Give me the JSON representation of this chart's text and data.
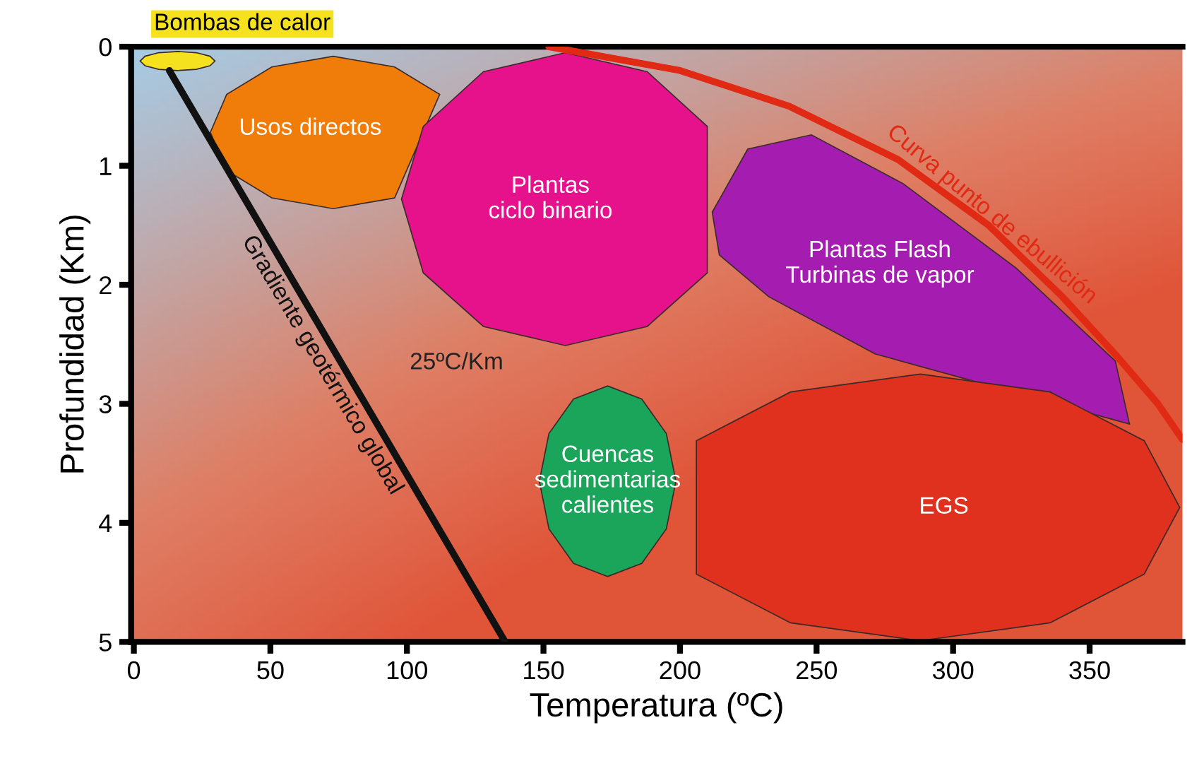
{
  "chart_data": {
    "type": "area",
    "xlabel": "Temperatura (ºC)",
    "ylabel": "Profundidad (Km)",
    "xlim": [
      -1,
      384
    ],
    "ylim": [
      5,
      0
    ],
    "xticks": [
      0,
      50,
      100,
      150,
      200,
      250,
      300,
      350
    ],
    "yticks": [
      0,
      1,
      2,
      3,
      4,
      5
    ],
    "grid": false,
    "legend": false,
    "series": [
      {
        "color": "#f5e11e",
        "x": [
          29.7,
          27.9,
          22.9,
          16,
          9.1,
          4.1,
          2.3,
          4.1,
          9.1,
          16,
          22.9,
          27.9
        ],
        "values": [
          0.12,
          0.16,
          0.19,
          0.2,
          0.19,
          0.16,
          0.12,
          0.08,
          0.05,
          0.04,
          0.05,
          0.08
        ]
      },
      {
        "name": "Usos directos",
        "color": "#f07d0a",
        "x": [
          95.5,
          73,
          50.5,
          34,
          28,
          34,
          50.5,
          73,
          95.5,
          112
        ],
        "values": [
          1.27,
          1.36,
          1.27,
          1.04,
          0.72,
          0.4,
          0.17,
          0.08,
          0.17,
          0.4
        ]
      },
      {
        "name": "Plantas\nciclo binario",
        "color": "#e6128c",
        "x": [
          210,
          188,
          158,
          128,
          106,
          98,
          106,
          128,
          158,
          188,
          210
        ],
        "values": [
          1.9,
          2.35,
          2.51,
          2.35,
          1.9,
          1.28,
          0.67,
          0.21,
          0.05,
          0.21,
          0.67
        ]
      },
      {
        "name": "Plantas Flash\nTurbinas de vapor",
        "color": "#a51db0",
        "x": [
          211.8,
          224.8,
          248.1,
          281.7,
          323.1,
          359.4,
          364.6,
          271.4,
          232.5,
          214.4
        ],
        "values": [
          1.39,
          0.86,
          0.74,
          1.15,
          1.86,
          2.64,
          3.17,
          2.58,
          2.1,
          1.75
        ]
      },
      {
        "name": "EGS",
        "color": "#e0301e",
        "x": [
          383,
          370,
          335.5,
          288,
          240.5,
          206,
          206,
          240.5,
          288,
          335.5,
          370
        ],
        "values": [
          3.87,
          4.43,
          4.84,
          4.99,
          4.84,
          4.43,
          3.31,
          2.9,
          2.75,
          2.9,
          3.31
        ]
      },
      {
        "name": "Cuencas\nsedimentarias\ncalientes",
        "color": "#1ba55a",
        "x": [
          198.5,
          195,
          186,
          173.5,
          161,
          152,
          148.5,
          152,
          161,
          173.5,
          186,
          195
        ],
        "values": [
          3.65,
          4.05,
          4.34,
          4.45,
          4.34,
          4.05,
          3.65,
          3.25,
          2.96,
          2.85,
          2.96,
          3.25
        ]
      },
      {
        "type": "line",
        "name": "Gradiente geotérmico global",
        "color": "#111111",
        "x": [
          13,
          136
        ],
        "values": [
          0.2,
          5
        ]
      },
      {
        "type": "line",
        "name": "Curva punto de ebullición",
        "color": "#e02a14",
        "x": [
          152,
          200,
          240,
          280,
          313,
          340,
          360,
          375,
          384
        ],
        "values": [
          0,
          0.2,
          0.5,
          0.95,
          1.5,
          2.1,
          2.6,
          3.0,
          3.3
        ]
      }
    ],
    "annotations": [
      {
        "text": "Bombas de calor",
        "x": 16,
        "y": 0
      },
      "25ºC/Km"
    ]
  }
}
